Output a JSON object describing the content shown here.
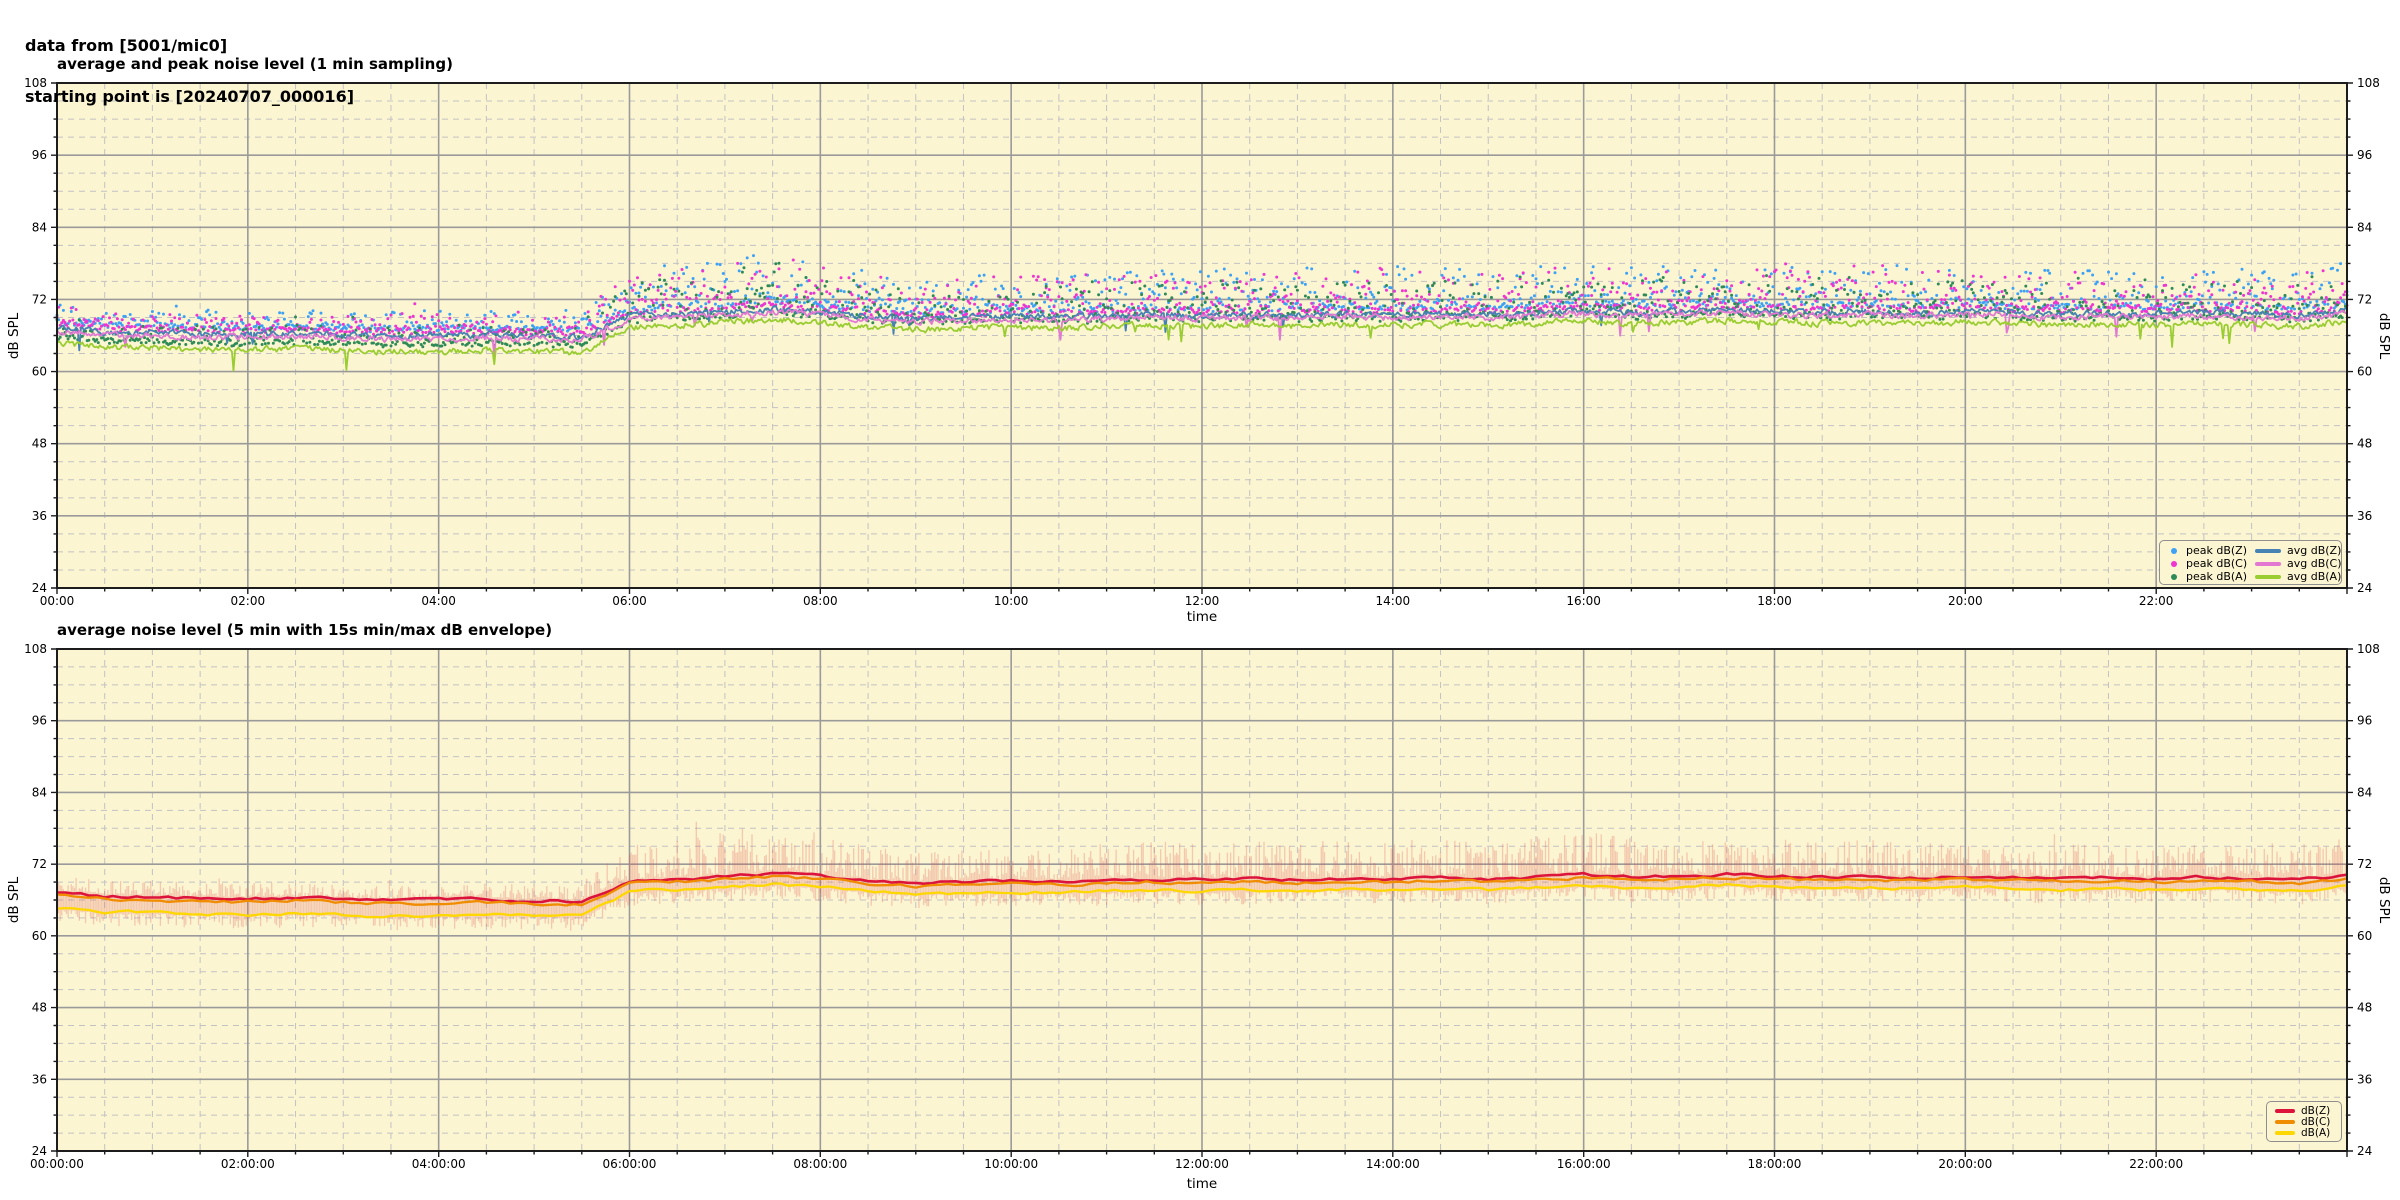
{
  "header": {
    "line1": "data from [5001/mic0]",
    "line2": "starting point is [20240707_000016]"
  },
  "style": {
    "plot_bg": "#fcf5d2",
    "grid_major": "#9a9a9a",
    "grid_minor": "#c2c2c2",
    "axis_border": "#1c1c1c",
    "tick_color": "#1c1c1c",
    "text_color": "#000000",
    "envelope_color": "rgba(221,84,74,0.28)",
    "legend_border": "#8f8f8f"
  },
  "chart_data": [
    {
      "type": "scatter",
      "title": "average and peak noise level (1 min sampling)",
      "xlabel": "time",
      "ylabel": "dB SPL",
      "y2label": "dB SPL",
      "ylim": [
        24,
        108
      ],
      "yticks": [
        24,
        36,
        48,
        60,
        72,
        84,
        96,
        108
      ],
      "y_minor_step": 3,
      "xlim_hours": [
        0,
        24
      ],
      "xtick_hours": [
        0,
        2,
        4,
        6,
        8,
        10,
        12,
        14,
        16,
        18,
        20,
        22
      ],
      "xtick_labels": [
        "00:00",
        "02:00",
        "04:00",
        "06:00",
        "08:00",
        "10:00",
        "12:00",
        "14:00",
        "16:00",
        "18:00",
        "20:00",
        "22:00"
      ],
      "x_minor_step_hours": 0.5,
      "grid": true,
      "legend_position": "bottom-right-inside",
      "legend": [
        {
          "label": "peak dB(Z)",
          "marker": "dot",
          "color": "#3da2f5"
        },
        {
          "label": "peak dB(C)",
          "marker": "dot",
          "color": "#ee35d2"
        },
        {
          "label": "peak dB(A)",
          "marker": "dot",
          "color": "#2e8b57"
        },
        {
          "label": "avg dB(Z)",
          "marker": "line",
          "color": "#4682b4"
        },
        {
          "label": "avg dB(C)",
          "marker": "line",
          "color": "#e278d2"
        },
        {
          "label": "avg dB(A)",
          "marker": "line",
          "color": "#9acd32"
        }
      ],
      "base": {
        "step_h": 0.5,
        "dbz": [
          67.3,
          66.6,
          66.5,
          66.3,
          66.2,
          66.4,
          66.1,
          65.9,
          66.0,
          66.1,
          65.9,
          65.8,
          69.2,
          69.6,
          69.9,
          70.4,
          70.0,
          69.2,
          68.8,
          69.0,
          69.2,
          69.0,
          69.3,
          69.5,
          69.3,
          69.5,
          69.4,
          69.6,
          69.5,
          69.7,
          69.5,
          69.8,
          70.2,
          69.8,
          70.0,
          70.3,
          70.0,
          69.8,
          70.0,
          69.7,
          70.0,
          69.8,
          69.5,
          69.7,
          69.5,
          69.8,
          69.6,
          69.3,
          70.1
        ],
        "dba": [
          64.7,
          64.0,
          63.9,
          63.7,
          63.6,
          63.8,
          63.5,
          63.3,
          63.4,
          63.5,
          63.3,
          63.2,
          67.4,
          67.8,
          68.1,
          68.6,
          68.2,
          67.4,
          67.0,
          67.2,
          67.4,
          67.2,
          67.5,
          67.7,
          67.5,
          67.7,
          67.6,
          67.8,
          67.7,
          67.9,
          67.7,
          68.0,
          68.4,
          68.0,
          68.2,
          68.5,
          68.2,
          68.0,
          68.2,
          67.9,
          68.2,
          68.0,
          67.7,
          67.9,
          67.7,
          68.0,
          67.8,
          67.5,
          68.3
        ],
        "dbc_delta": -0.5
      },
      "noise": {
        "line_jitter": 0.45,
        "dip_prob": 0.012,
        "samples_per_hour": 60,
        "peak_amp": [
          [
            0,
            3.0
          ],
          [
            5.4,
            3.0
          ],
          [
            6.0,
            6.5
          ],
          [
            6.8,
            8.0
          ],
          [
            7.6,
            8.5
          ],
          [
            8.2,
            6.5
          ],
          [
            9,
            5.5
          ],
          [
            10,
            6.0
          ],
          [
            11,
            6.5
          ],
          [
            12,
            6.5
          ],
          [
            13,
            6.5
          ],
          [
            14,
            7.0
          ],
          [
            15,
            6.5
          ],
          [
            16,
            7.5
          ],
          [
            17,
            6.5
          ],
          [
            18,
            6.5
          ],
          [
            19,
            7.0
          ],
          [
            20,
            6.0
          ],
          [
            21,
            6.5
          ],
          [
            22,
            6.0
          ],
          [
            23,
            6.5
          ],
          [
            24,
            7.0
          ]
        ]
      }
    },
    {
      "type": "line",
      "title": "average noise level (5 min with 15s min/max dB envelope)",
      "xlabel": "time",
      "ylabel": "dB SPL",
      "y2label": "dB SPL",
      "ylim": [
        24,
        108
      ],
      "yticks": [
        24,
        36,
        48,
        60,
        72,
        84,
        96,
        108
      ],
      "y_minor_step": 3,
      "xlim_hours": [
        0,
        24
      ],
      "xtick_hours": [
        0,
        2,
        4,
        6,
        8,
        10,
        12,
        14,
        16,
        18,
        20,
        22
      ],
      "xtick_labels": [
        "00:00:00",
        "02:00:00",
        "04:00:00",
        "06:00:00",
        "08:00:00",
        "10:00:00",
        "12:00:00",
        "14:00:00",
        "16:00:00",
        "18:00:00",
        "20:00:00",
        "22:00:00"
      ],
      "x_minor_step_hours": 0.5,
      "grid": true,
      "legend_position": "bottom-right-inside",
      "legend": [
        {
          "label": "dB(Z)",
          "marker": "line",
          "color": "#dc143c"
        },
        {
          "label": "dB(C)",
          "marker": "line",
          "color": "#f08c00"
        },
        {
          "label": "dB(A)",
          "marker": "line",
          "color": "#ffd700"
        }
      ],
      "base": {
        "step_h": 0.5,
        "dbz": [
          67.3,
          66.6,
          66.5,
          66.3,
          66.2,
          66.4,
          66.1,
          65.9,
          66.0,
          66.1,
          65.9,
          65.8,
          69.2,
          69.6,
          69.9,
          70.4,
          70.0,
          69.2,
          68.8,
          69.0,
          69.2,
          69.0,
          69.3,
          69.5,
          69.3,
          69.5,
          69.4,
          69.6,
          69.5,
          69.7,
          69.5,
          69.8,
          70.2,
          69.8,
          70.0,
          70.3,
          70.0,
          69.8,
          70.0,
          69.7,
          70.0,
          69.8,
          69.5,
          69.7,
          69.5,
          69.8,
          69.6,
          69.3,
          70.1
        ],
        "dba": [
          64.7,
          64.0,
          63.9,
          63.7,
          63.6,
          63.8,
          63.5,
          63.3,
          63.4,
          63.5,
          63.3,
          63.2,
          67.4,
          67.8,
          68.1,
          68.6,
          68.2,
          67.4,
          67.0,
          67.2,
          67.4,
          67.2,
          67.5,
          67.7,
          67.5,
          67.7,
          67.6,
          67.8,
          67.7,
          67.9,
          67.7,
          68.0,
          68.4,
          68.0,
          68.2,
          68.5,
          68.2,
          68.0,
          68.2,
          67.9,
          68.2,
          68.0,
          67.7,
          67.9,
          67.7,
          68.0,
          67.8,
          67.5,
          68.3
        ],
        "dbc_delta": -0.5
      },
      "noise": {
        "line_jitter": 0.22,
        "samples_per_hour": 12,
        "env_samples_per_hour": 60,
        "env_amp": [
          [
            0,
            2.4
          ],
          [
            5.4,
            2.4
          ],
          [
            6.0,
            5.5
          ],
          [
            7.0,
            7.5
          ],
          [
            7.6,
            8.5
          ],
          [
            8.2,
            6.0
          ],
          [
            9,
            5.0
          ],
          [
            10,
            5.5
          ],
          [
            11,
            6.0
          ],
          [
            12,
            6.0
          ],
          [
            13,
            6.0
          ],
          [
            14,
            6.5
          ],
          [
            15,
            6.0
          ],
          [
            16,
            7.0
          ],
          [
            17,
            5.5
          ],
          [
            18,
            6.0
          ],
          [
            19,
            6.5
          ],
          [
            20,
            5.0
          ],
          [
            21,
            5.5
          ],
          [
            22,
            5.0
          ],
          [
            23,
            5.5
          ],
          [
            24,
            6.5
          ]
        ],
        "env_down": 2.2
      }
    }
  ]
}
